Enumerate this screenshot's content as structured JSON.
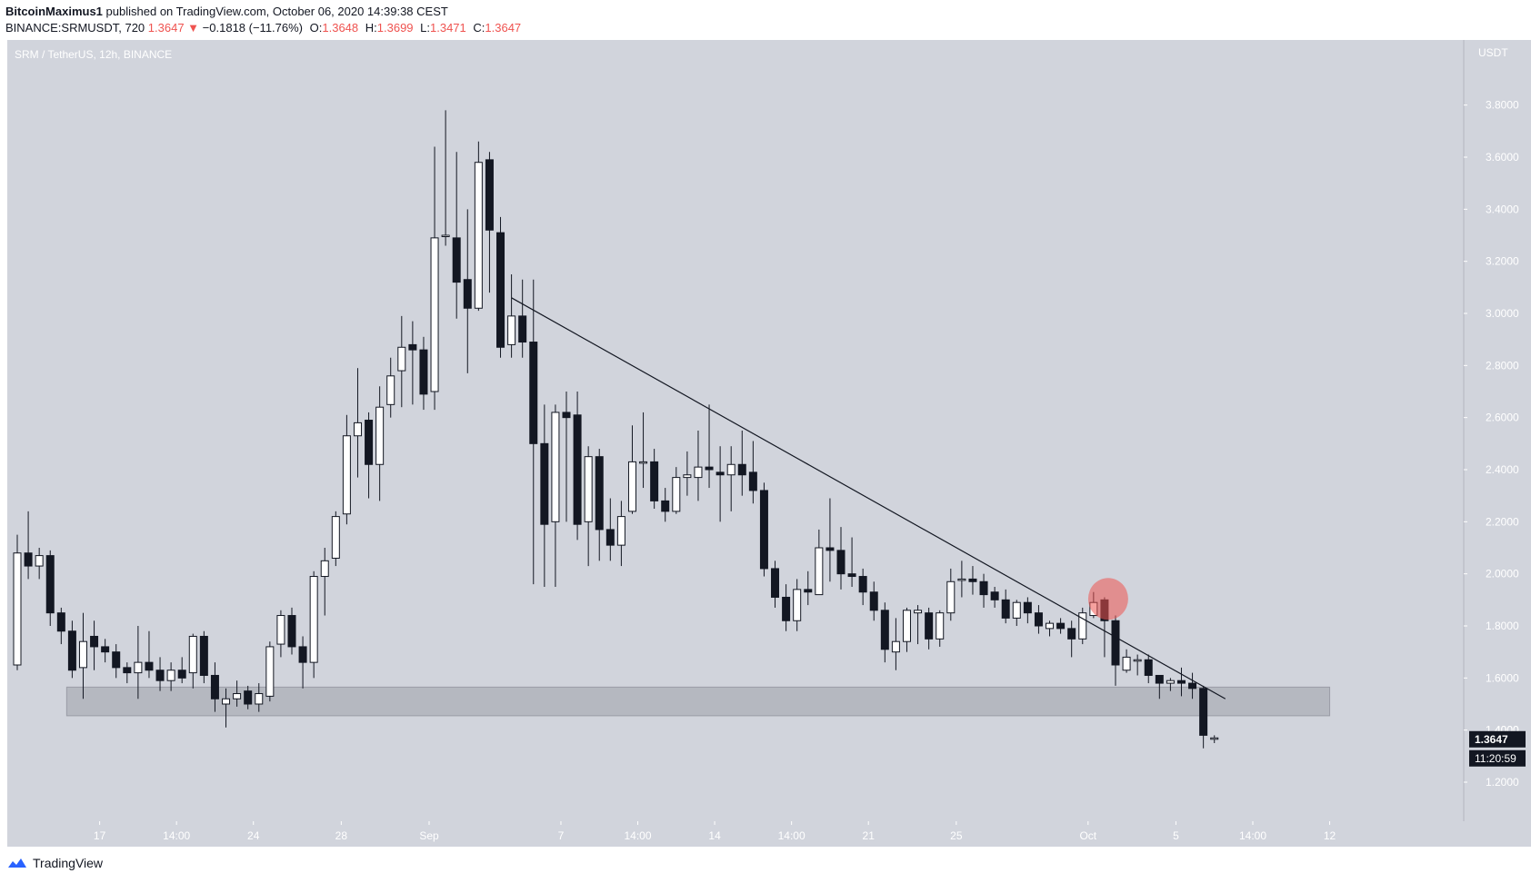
{
  "header": {
    "author": "BitcoinMaximus1",
    "published": "published on TradingView.com, October 06, 2020 14:39:38 CEST",
    "symbol": "BINANCE:SRMUSDT, 720",
    "last": "1.3647",
    "change": "−0.1818 (−11.76%)",
    "o_label": "O:",
    "o_val": "1.3648",
    "h_label": "H:",
    "h_val": "1.3699",
    "l_label": "L:",
    "l_val": "1.3471",
    "c_label": "C:",
    "c_val": "1.3647"
  },
  "footer": {
    "brand": "TradingView"
  },
  "colors": {
    "background": "#d1d4dc",
    "bull": "#ffffff",
    "bear": "#131722",
    "zone": "#b2b5be",
    "highlight": "#ef5350",
    "down_arrow": "#ef5350"
  },
  "chart_data": {
    "type": "candlestick",
    "title": "SRM / TetherUS, 12h, BINANCE",
    "y_unit": "USDT",
    "ylim": [
      1.05,
      4.05
    ],
    "y_ticks": [
      "1.2000",
      "1.4000",
      "1.6000",
      "1.8000",
      "2.0000",
      "2.2000",
      "2.4000",
      "2.6000",
      "2.8000",
      "3.0000",
      "3.2000",
      "3.4000",
      "3.6000",
      "3.8000"
    ],
    "x_ticks": [
      {
        "label": "17",
        "i": 7.5
      },
      {
        "label": "14:00",
        "i": 14.5
      },
      {
        "label": "24",
        "i": 21.5
      },
      {
        "label": "28",
        "i": 29.5
      },
      {
        "label": "Sep",
        "i": 37.5
      },
      {
        "label": "7",
        "i": 49.5
      },
      {
        "label": "14:00",
        "i": 56.5
      },
      {
        "label": "14",
        "i": 63.5
      },
      {
        "label": "14:00",
        "i": 70.5
      },
      {
        "label": "21",
        "i": 77.5
      },
      {
        "label": "25",
        "i": 85.5
      },
      {
        "label": "Oct",
        "i": 97.5
      },
      {
        "label": "5",
        "i": 105.5
      },
      {
        "label": "14:00",
        "i": 112.5
      },
      {
        "label": "12",
        "i": 119.5
      }
    ],
    "candles": [
      [
        1.65,
        2.08,
        2.15,
        1.63
      ],
      [
        2.08,
        2.03,
        2.24,
        1.98
      ],
      [
        2.03,
        2.07,
        2.1,
        1.98
      ],
      [
        2.07,
        1.85,
        2.09,
        1.8
      ],
      [
        1.85,
        1.78,
        1.87,
        1.73
      ],
      [
        1.78,
        1.63,
        1.82,
        1.6
      ],
      [
        1.64,
        1.74,
        1.85,
        1.52
      ],
      [
        1.76,
        1.72,
        1.82,
        1.63
      ],
      [
        1.72,
        1.7,
        1.75,
        1.66
      ],
      [
        1.7,
        1.64,
        1.73,
        1.6
      ],
      [
        1.64,
        1.62,
        1.66,
        1.58
      ],
      [
        1.62,
        1.66,
        1.8,
        1.52
      ],
      [
        1.66,
        1.63,
        1.78,
        1.6
      ],
      [
        1.63,
        1.59,
        1.68,
        1.55
      ],
      [
        1.59,
        1.63,
        1.66,
        1.55
      ],
      [
        1.63,
        1.6,
        1.68,
        1.58
      ],
      [
        1.62,
        1.76,
        1.77,
        1.56
      ],
      [
        1.76,
        1.61,
        1.78,
        1.58
      ],
      [
        1.61,
        1.52,
        1.66,
        1.47
      ],
      [
        1.5,
        1.52,
        1.56,
        1.41
      ],
      [
        1.52,
        1.54,
        1.59,
        1.49
      ],
      [
        1.55,
        1.5,
        1.57,
        1.48
      ],
      [
        1.5,
        1.54,
        1.58,
        1.47
      ],
      [
        1.53,
        1.72,
        1.74,
        1.51
      ],
      [
        1.73,
        1.84,
        1.86,
        1.68
      ],
      [
        1.84,
        1.72,
        1.87,
        1.69
      ],
      [
        1.72,
        1.66,
        1.76,
        1.56
      ],
      [
        1.66,
        1.99,
        2.01,
        1.6
      ],
      [
        1.99,
        2.05,
        2.1,
        1.84
      ],
      [
        2.06,
        2.22,
        2.24,
        2.03
      ],
      [
        2.23,
        2.53,
        2.61,
        2.19
      ],
      [
        2.53,
        2.58,
        2.79,
        2.37
      ],
      [
        2.59,
        2.42,
        2.62,
        2.29
      ],
      [
        2.42,
        2.64,
        2.72,
        2.28
      ],
      [
        2.65,
        2.76,
        2.83,
        2.6
      ],
      [
        2.78,
        2.87,
        2.99,
        2.64
      ],
      [
        2.88,
        2.86,
        2.97,
        2.65
      ],
      [
        2.86,
        2.69,
        2.91,
        2.63
      ],
      [
        2.7,
        3.29,
        3.64,
        2.63
      ],
      [
        3.3,
        3.3,
        3.78,
        3.26
      ],
      [
        3.29,
        3.12,
        3.62,
        2.98
      ],
      [
        3.13,
        3.02,
        3.4,
        2.77
      ],
      [
        3.02,
        3.58,
        3.66,
        3.01
      ],
      [
        3.59,
        3.32,
        3.62,
        3.08
      ],
      [
        3.31,
        2.87,
        3.37,
        2.83
      ],
      [
        2.88,
        2.99,
        3.15,
        2.83
      ],
      [
        2.99,
        2.89,
        3.13,
        2.83
      ],
      [
        2.89,
        2.5,
        3.13,
        1.96
      ],
      [
        2.5,
        2.19,
        2.65,
        1.95
      ],
      [
        2.2,
        2.62,
        2.65,
        1.95
      ],
      [
        2.62,
        2.6,
        2.7,
        2.2
      ],
      [
        2.61,
        2.19,
        2.7,
        2.13
      ],
      [
        2.2,
        2.45,
        2.49,
        2.03
      ],
      [
        2.45,
        2.17,
        2.48,
        2.05
      ],
      [
        2.17,
        2.11,
        2.29,
        2.05
      ],
      [
        2.11,
        2.22,
        2.28,
        2.03
      ],
      [
        2.24,
        2.43,
        2.57,
        2.23
      ],
      [
        2.43,
        2.43,
        2.62,
        2.33
      ],
      [
        2.43,
        2.28,
        2.48,
        2.25
      ],
      [
        2.28,
        2.24,
        2.33,
        2.2
      ],
      [
        2.24,
        2.37,
        2.41,
        2.23
      ],
      [
        2.37,
        2.38,
        2.47,
        2.3
      ],
      [
        2.37,
        2.41,
        2.55,
        2.28
      ],
      [
        2.41,
        2.4,
        2.65,
        2.33
      ],
      [
        2.39,
        2.38,
        2.49,
        2.2
      ],
      [
        2.38,
        2.42,
        2.49,
        2.24
      ],
      [
        2.42,
        2.38,
        2.55,
        2.3
      ],
      [
        2.39,
        2.32,
        2.51,
        2.27
      ],
      [
        2.32,
        2.02,
        2.35,
        1.99
      ],
      [
        2.02,
        1.91,
        2.05,
        1.87
      ],
      [
        1.91,
        1.82,
        1.96,
        1.78
      ],
      [
        1.82,
        1.94,
        1.98,
        1.78
      ],
      [
        1.94,
        1.93,
        2.01,
        1.88
      ],
      [
        1.92,
        2.1,
        2.17,
        1.94
      ],
      [
        2.1,
        2.09,
        2.29,
        1.97
      ],
      [
        2.09,
        2.0,
        2.18,
        1.94
      ],
      [
        2.0,
        1.99,
        2.14,
        1.95
      ],
      [
        1.99,
        1.93,
        2.02,
        1.88
      ],
      [
        1.93,
        1.86,
        1.97,
        1.82
      ],
      [
        1.86,
        1.71,
        1.89,
        1.66
      ],
      [
        1.7,
        1.74,
        1.83,
        1.63
      ],
      [
        1.74,
        1.86,
        1.87,
        1.7
      ],
      [
        1.85,
        1.86,
        1.88,
        1.73
      ],
      [
        1.85,
        1.75,
        1.87,
        1.71
      ],
      [
        1.75,
        1.85,
        1.86,
        1.72
      ],
      [
        1.85,
        1.97,
        2.02,
        1.82
      ],
      [
        1.98,
        1.98,
        2.05,
        1.91
      ],
      [
        1.98,
        1.97,
        2.03,
        1.92
      ],
      [
        1.97,
        1.92,
        2.0,
        1.87
      ],
      [
        1.93,
        1.9,
        1.95,
        1.87
      ],
      [
        1.9,
        1.83,
        1.94,
        1.81
      ],
      [
        1.83,
        1.89,
        1.9,
        1.8
      ],
      [
        1.89,
        1.85,
        1.91,
        1.81
      ],
      [
        1.85,
        1.8,
        1.88,
        1.77
      ],
      [
        1.79,
        1.81,
        1.82,
        1.76
      ],
      [
        1.81,
        1.79,
        1.83,
        1.77
      ],
      [
        1.79,
        1.75,
        1.82,
        1.68
      ],
      [
        1.75,
        1.85,
        1.87,
        1.73
      ],
      [
        1.84,
        1.89,
        1.93,
        1.83
      ],
      [
        1.9,
        1.82,
        1.91,
        1.68
      ],
      [
        1.82,
        1.65,
        1.84,
        1.57
      ],
      [
        1.63,
        1.68,
        1.71,
        1.62
      ],
      [
        1.67,
        1.67,
        1.69,
        1.61
      ],
      [
        1.67,
        1.61,
        1.69,
        1.58
      ],
      [
        1.61,
        1.58,
        1.61,
        1.52
      ],
      [
        1.58,
        1.59,
        1.6,
        1.55
      ],
      [
        1.59,
        1.58,
        1.64,
        1.53
      ],
      [
        1.58,
        1.56,
        1.62,
        1.52
      ],
      [
        1.56,
        1.38,
        1.57,
        1.33
      ],
      [
        1.37,
        1.37,
        1.38,
        1.35
      ]
    ],
    "support_zone": {
      "i0": 4.5,
      "i1": 119.5,
      "y_low": 1.455,
      "y_high": 1.565
    },
    "trendline": {
      "i0": 45,
      "y0": 3.06,
      "i1": 110,
      "y1": 1.52
    },
    "highlight_marker": {
      "i": 99,
      "y": 1.89
    },
    "last_price_label": "1.3647",
    "countdown_label": "11:20:59",
    "hidden_tick_label": "1.4000"
  }
}
